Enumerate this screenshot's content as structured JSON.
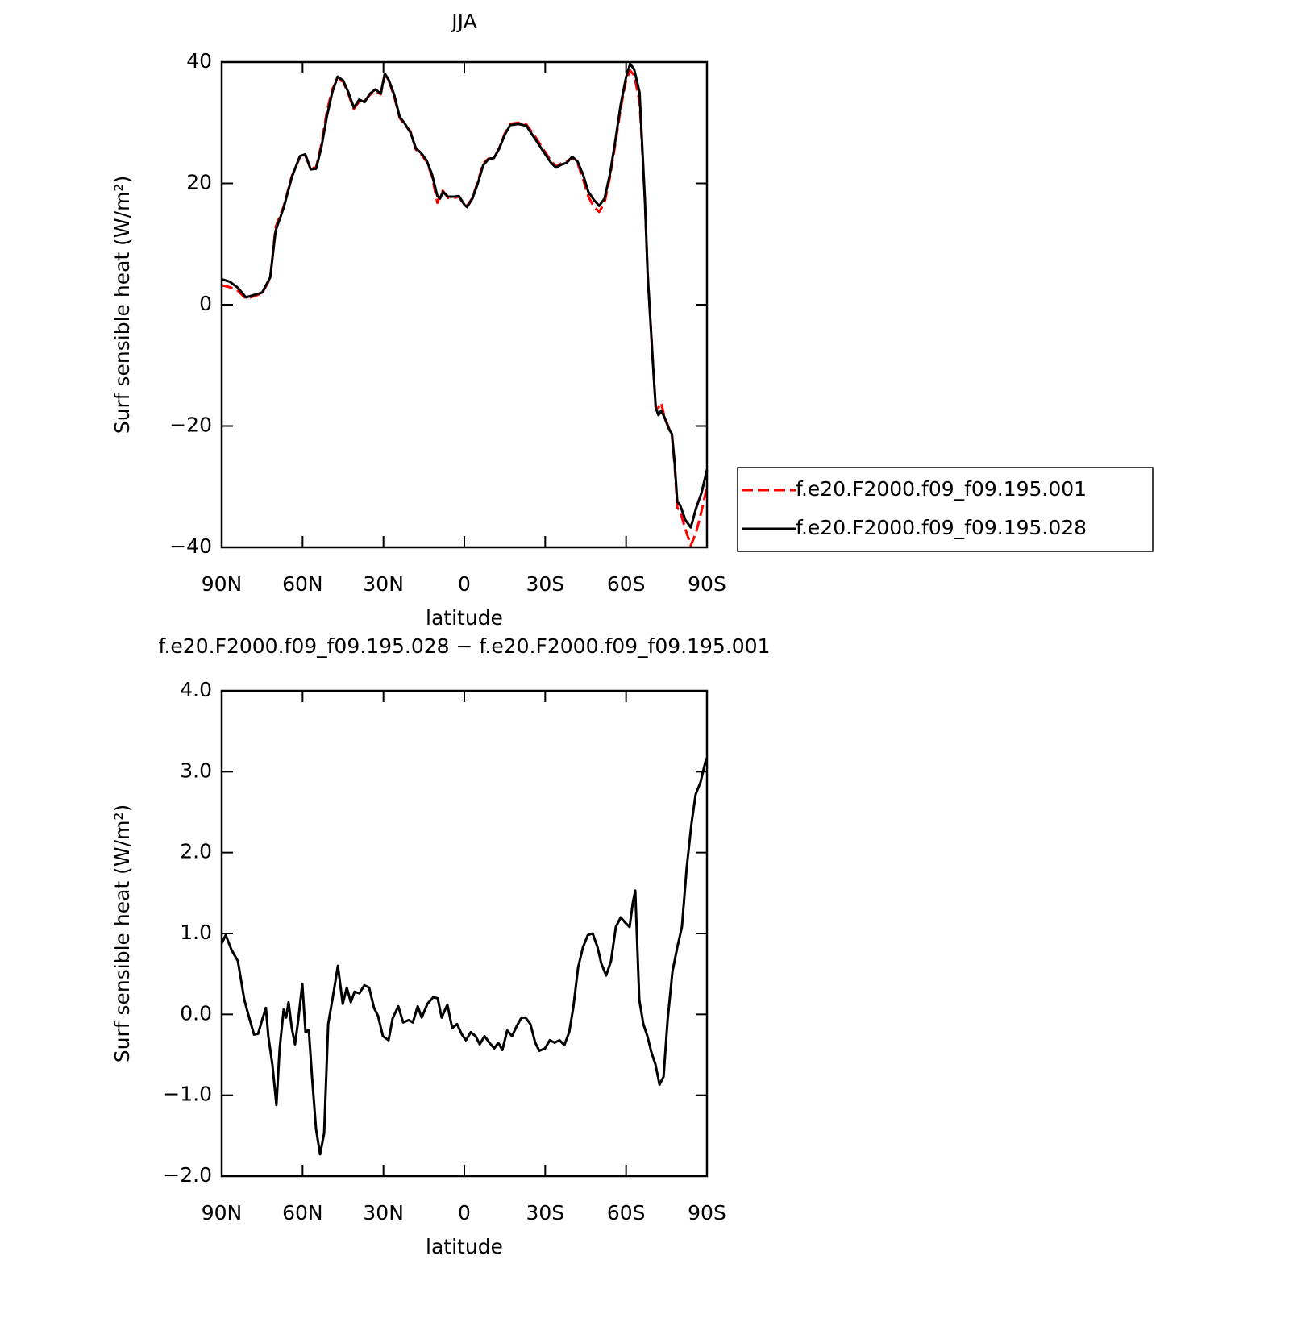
{
  "chart_data": [
    {
      "type": "line",
      "title": "JJA",
      "xlabel": "latitude",
      "ylabel": "Surf sensible heat (W/m²)",
      "xlim": [
        90,
        -90
      ],
      "xticks": [
        {
          "value": 90,
          "label": "90N"
        },
        {
          "value": 60,
          "label": "60N"
        },
        {
          "value": 30,
          "label": "30N"
        },
        0,
        {
          "value": -30,
          "label": "30S"
        },
        {
          "value": -60,
          "label": "60S"
        },
        {
          "value": -90,
          "label": "90S"
        }
      ],
      "ylim": [
        -40,
        40
      ],
      "yticks": [
        {
          "value": -40,
          "label": "−40"
        },
        {
          "value": -20,
          "label": "−20"
        },
        0,
        20,
        40
      ],
      "legend": "right",
      "x": [
        90,
        87,
        84,
        81,
        78,
        75,
        72,
        70,
        67,
        64,
        61,
        59,
        57,
        55,
        53,
        51,
        49,
        47,
        45,
        43,
        41,
        39,
        37,
        35,
        33,
        31,
        29.5,
        28,
        26,
        24,
        22,
        20,
        18,
        16,
        14,
        12,
        10,
        9,
        8,
        6,
        4,
        2,
        0,
        -1,
        -3,
        -5,
        -7,
        -9,
        -11,
        -13,
        -15,
        -17,
        -20,
        -23,
        -26,
        -29,
        -32,
        -34,
        -36,
        -38,
        -40,
        -42,
        -44,
        -46,
        -48,
        -50,
        -52,
        -54,
        -56,
        -58,
        -60,
        -61.5,
        -63,
        -65,
        -66,
        -67,
        -68,
        -69,
        -70,
        -71,
        -72,
        -73,
        -74,
        -76,
        -77,
        -78,
        -79,
        -80,
        -82,
        -84,
        -86,
        -88,
        -90
      ],
      "series": [
        {
          "name": "f.e20.F2000.f09_f09.195.001",
          "color": "#ff0000",
          "linestyle": "dashed",
          "values": [
            3.2,
            2.9,
            2.3,
            1.0,
            1.4,
            1.9,
            4.3,
            12.8,
            16.2,
            21.2,
            24.3,
            24.6,
            22.5,
            22.6,
            26.5,
            31.8,
            35.5,
            37.2,
            36.8,
            34.7,
            32.3,
            33.5,
            33.6,
            34.6,
            35.2,
            34.7,
            37.9,
            36.9,
            34.3,
            30.8,
            29.6,
            28.6,
            25.6,
            24.8,
            23.6,
            21.2,
            16.8,
            18,
            18.8,
            17.6,
            17.6,
            17.8,
            16.4,
            16.3,
            17.6,
            20.3,
            23.3,
            24.1,
            24.1,
            25.9,
            28.2,
            29.8,
            30,
            29.7,
            27.9,
            25.8,
            23.8,
            22.8,
            23.3,
            23.6,
            24.3,
            23.3,
            20.8,
            17.8,
            16.2,
            15.3,
            16.8,
            21,
            26.5,
            32.4,
            37,
            38.6,
            37.8,
            33.5,
            25.5,
            17,
            5,
            -2.5,
            -10,
            -17,
            -17,
            -16.2,
            -18,
            -20.5,
            -21.6,
            -26.5,
            -33.5,
            -34,
            -37,
            -39.7,
            -37.5,
            -34,
            -30
          ]
        },
        {
          "name": "f.e20.F2000.f09_f09.195.028",
          "color": "#000000",
          "linestyle": "solid",
          "values": [
            4.2,
            3.8,
            2.8,
            1.2,
            1.6,
            2.0,
            4.5,
            12.2,
            16,
            21,
            24.5,
            24.8,
            22.3,
            22.4,
            26,
            31,
            35,
            37.6,
            37,
            35,
            32.5,
            33.8,
            33.4,
            34.8,
            35.5,
            34.8,
            38.1,
            37,
            34.6,
            31,
            29.8,
            28.4,
            25.8,
            25,
            23.8,
            21.5,
            17.9,
            17.5,
            18.6,
            17.8,
            17.8,
            17.9,
            16.5,
            16.1,
            17.5,
            20,
            23,
            24,
            24.2,
            25.8,
            28,
            29.6,
            29.8,
            29.5,
            27.5,
            25.5,
            23.5,
            22.6,
            23.1,
            23.4,
            24.4,
            23.6,
            21.5,
            18.6,
            17.3,
            16.3,
            17.5,
            21.5,
            27,
            33,
            37.5,
            39.7,
            38.8,
            35,
            26,
            17,
            5,
            -2.5,
            -10,
            -17,
            -18.2,
            -17.5,
            -18.3,
            -20.6,
            -21.3,
            -26,
            -32.5,
            -33,
            -35.5,
            -36.7,
            -33.5,
            -31,
            -27.2
          ]
        }
      ]
    },
    {
      "type": "line",
      "title": "f.e20.F2000.f09_f09.195.028 − f.e20.F2000.f09_f09.195.001",
      "xlabel": "latitude",
      "ylabel": "Surf sensible heat (W/m²)",
      "xlim": [
        90,
        -90
      ],
      "xticks": [
        {
          "value": 90,
          "label": "90N"
        },
        {
          "value": 60,
          "label": "60N"
        },
        {
          "value": 30,
          "label": "30N"
        },
        0,
        {
          "value": -30,
          "label": "30S"
        },
        {
          "value": -60,
          "label": "60S"
        },
        {
          "value": -90,
          "label": "90S"
        }
      ],
      "ylim": [
        -2,
        4
      ],
      "yticks": [
        {
          "value": -2,
          "label": "−2.0"
        },
        {
          "value": -1,
          "label": "−1.0"
        },
        {
          "value": 0,
          "label": "0.0"
        },
        {
          "value": 1,
          "label": "1.0"
        },
        {
          "value": 2,
          "label": "2.0"
        },
        {
          "value": 3,
          "label": "3.0"
        },
        {
          "value": 4,
          "label": "4.0"
        }
      ],
      "x": [
        90,
        88.5,
        86.4,
        84,
        81.6,
        80.4,
        78,
        76.5,
        75,
        73.6,
        72.7,
        71.2,
        69.7,
        68.5,
        67,
        66.1,
        65.2,
        64,
        62.8,
        61.6,
        60.1,
        58.9,
        57.7,
        56.5,
        55,
        53.5,
        52,
        50.5,
        48.7,
        46.9,
        45.1,
        43.6,
        42.1,
        40.7,
        38.9,
        37.1,
        35.3,
        33.5,
        32,
        30.2,
        28.1,
        26.6,
        24.5,
        22.7,
        20.6,
        19.1,
        17.3,
        15.8,
        13.7,
        11.6,
        9.9,
        8.4,
        6.3,
        4.5,
        2.7,
        0.9,
        -0.6,
        -2.4,
        -4.2,
        -5.7,
        -7.5,
        -9.3,
        -11.1,
        -12.6,
        -14.1,
        -15.9,
        -17.7,
        -19.5,
        -21.2,
        -22.7,
        -24.5,
        -26.3,
        -27.8,
        -29.9,
        -31.7,
        -33.5,
        -35.3,
        -37.1,
        -38.9,
        -40.4,
        -42.2,
        -44,
        -45.8,
        -47.6,
        -49.4,
        -50.8,
        -52.6,
        -54.4,
        -56.2,
        -58,
        -59.8,
        -61.3,
        -62.5,
        -63.4,
        -64.9,
        -66.4,
        -67.9,
        -69.4,
        -70.9,
        -72.4,
        -73.9,
        -75.4,
        -77.2,
        -79,
        -80.7,
        -82.5,
        -84.3,
        -85.8,
        -87.6,
        -89.4,
        -90
      ],
      "series": [
        {
          "color": "#000000",
          "linestyle": "solid",
          "values": [
            0.88,
            0.98,
            0.8,
            0.66,
            0.18,
            0.03,
            -0.25,
            -0.24,
            -0.07,
            0.08,
            -0.27,
            -0.62,
            -1.12,
            -0.42,
            0.06,
            -0.04,
            0.15,
            -0.17,
            -0.37,
            -0.07,
            0.38,
            -0.22,
            -0.19,
            -0.77,
            -1.42,
            -1.73,
            -1.47,
            -0.12,
            0.23,
            0.6,
            0.13,
            0.33,
            0.15,
            0.28,
            0.26,
            0.36,
            0.33,
            0.08,
            -0.02,
            -0.27,
            -0.32,
            -0.05,
            0.1,
            -0.1,
            -0.07,
            -0.1,
            0.1,
            -0.04,
            0.13,
            0.21,
            0.2,
            -0.04,
            0.12,
            -0.17,
            -0.12,
            -0.25,
            -0.32,
            -0.22,
            -0.27,
            -0.37,
            -0.27,
            -0.35,
            -0.42,
            -0.35,
            -0.44,
            -0.2,
            -0.27,
            -0.14,
            -0.04,
            -0.04,
            -0.12,
            -0.35,
            -0.45,
            -0.42,
            -0.32,
            -0.35,
            -0.32,
            -0.38,
            -0.22,
            0.08,
            0.58,
            0.83,
            0.98,
            1.0,
            0.83,
            0.63,
            0.48,
            0.66,
            1.08,
            1.2,
            1.13,
            1.08,
            1.38,
            1.53,
            0.18,
            -0.12,
            -0.27,
            -0.47,
            -0.62,
            -0.87,
            -0.77,
            -0.07,
            0.53,
            0.83,
            1.08,
            1.82,
            2.37,
            2.72,
            2.87,
            3.12,
            3.17
          ]
        }
      ]
    }
  ]
}
